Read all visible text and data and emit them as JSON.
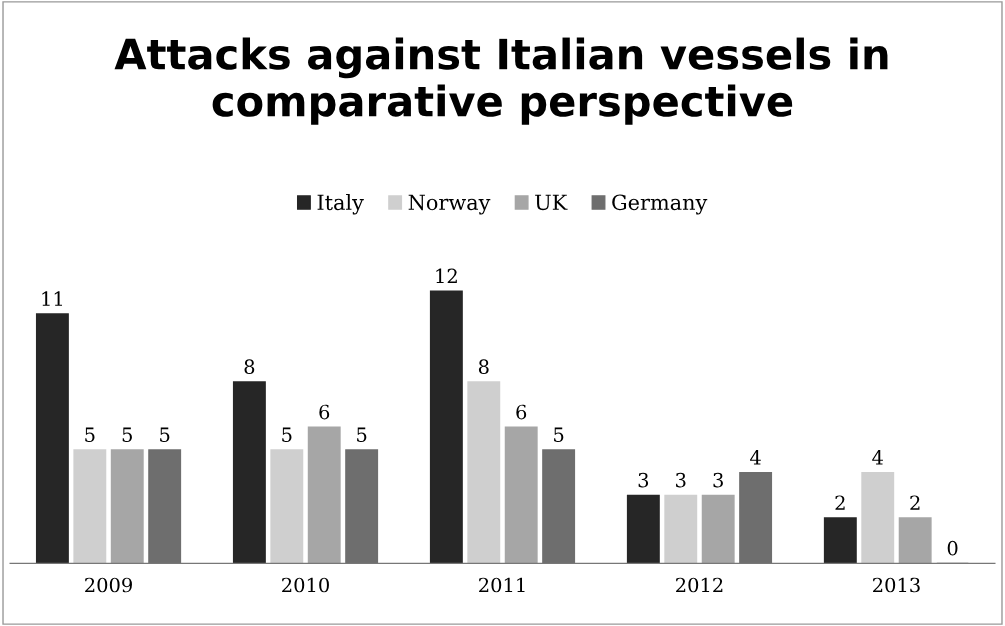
{
  "chart_data": {
    "type": "bar",
    "title": "Attacks against Italian vessels in\ncomparative perspective",
    "categories": [
      "2009",
      "2010",
      "2011",
      "2012",
      "2013"
    ],
    "series": [
      {
        "name": "Italy",
        "color": "#262626",
        "values": [
          11,
          8,
          12,
          3,
          2
        ]
      },
      {
        "name": "Norway",
        "color": "#cfcfcf",
        "values": [
          5,
          5,
          8,
          3,
          4
        ]
      },
      {
        "name": "UK",
        "color": "#a6a6a6",
        "values": [
          5,
          6,
          6,
          3,
          2
        ]
      },
      {
        "name": "Germany",
        "color": "#6e6e6e",
        "values": [
          5,
          5,
          5,
          4,
          0
        ]
      }
    ],
    "data_labels": true,
    "legend": "top",
    "grid": false
  }
}
